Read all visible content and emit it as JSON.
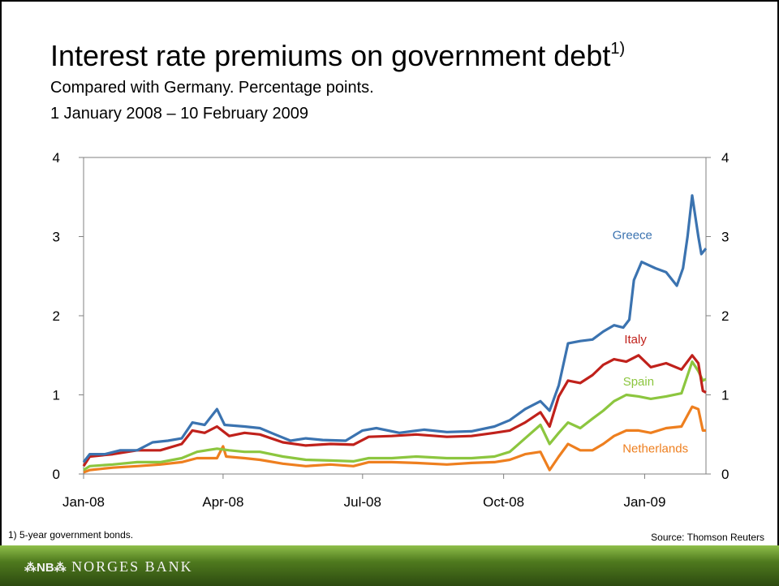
{
  "title": "Interest rate premiums on government debt",
  "title_sup": "1)",
  "subtitle_line1": "Compared with Germany. Percentage points.",
  "subtitle_line2": "1 January 2008 – 10 February 2009",
  "footnote": "1)  5-year government bonds.",
  "source": "Source: Thomson Reuters",
  "footer": {
    "logo_mark": "⁂NB⁂",
    "logo_text": "NORGES BANK"
  },
  "chart_data": {
    "type": "line",
    "x_label": "",
    "y_label": "",
    "x_range": [
      "2008-01-01",
      "2009-02-10"
    ],
    "y_range": [
      0,
      4
    ],
    "y_ticks": [
      "0",
      "1",
      "2",
      "3",
      "4"
    ],
    "x_ticks": [
      {
        "date": "2008-01-01",
        "label": "Jan-08"
      },
      {
        "date": "2008-04-01",
        "label": "Apr-08"
      },
      {
        "date": "2008-07-01",
        "label": "Jul-08"
      },
      {
        "date": "2008-10-01",
        "label": "Oct-08"
      },
      {
        "date": "2009-01-01",
        "label": "Jan-09"
      }
    ],
    "grid": false,
    "secondary_y_axis": true,
    "series": [
      {
        "name": "Greece",
        "color": "#3b73b0",
        "points": [
          [
            "2008-01-01",
            0.15
          ],
          [
            "2008-01-05",
            0.25
          ],
          [
            "2008-01-15",
            0.25
          ],
          [
            "2008-01-25",
            0.3
          ],
          [
            "2008-02-05",
            0.3
          ],
          [
            "2008-02-15",
            0.4
          ],
          [
            "2008-02-25",
            0.42
          ],
          [
            "2008-03-05",
            0.45
          ],
          [
            "2008-03-12",
            0.65
          ],
          [
            "2008-03-20",
            0.62
          ],
          [
            "2008-03-28",
            0.82
          ],
          [
            "2008-04-02",
            0.62
          ],
          [
            "2008-04-15",
            0.6
          ],
          [
            "2008-04-25",
            0.58
          ],
          [
            "2008-05-05",
            0.5
          ],
          [
            "2008-05-15",
            0.42
          ],
          [
            "2008-05-25",
            0.45
          ],
          [
            "2008-06-05",
            0.43
          ],
          [
            "2008-06-20",
            0.42
          ],
          [
            "2008-07-01",
            0.55
          ],
          [
            "2008-07-10",
            0.58
          ],
          [
            "2008-07-25",
            0.52
          ],
          [
            "2008-08-10",
            0.56
          ],
          [
            "2008-08-25",
            0.53
          ],
          [
            "2008-09-10",
            0.54
          ],
          [
            "2008-09-25",
            0.6
          ],
          [
            "2008-10-05",
            0.68
          ],
          [
            "2008-10-15",
            0.82
          ],
          [
            "2008-10-25",
            0.92
          ],
          [
            "2008-10-31",
            0.8
          ],
          [
            "2008-11-06",
            1.12
          ],
          [
            "2008-11-12",
            1.65
          ],
          [
            "2008-11-20",
            1.68
          ],
          [
            "2008-11-28",
            1.7
          ],
          [
            "2008-12-05",
            1.8
          ],
          [
            "2008-12-12",
            1.88
          ],
          [
            "2008-12-18",
            1.85
          ],
          [
            "2008-12-22",
            1.95
          ],
          [
            "2008-12-25",
            2.45
          ],
          [
            "2008-12-30",
            2.68
          ],
          [
            "2009-01-08",
            2.6
          ],
          [
            "2009-01-15",
            2.55
          ],
          [
            "2009-01-22",
            2.38
          ],
          [
            "2009-01-26",
            2.6
          ],
          [
            "2009-01-29",
            3.0
          ],
          [
            "2009-02-01",
            3.52
          ],
          [
            "2009-02-05",
            3.0
          ],
          [
            "2009-02-07",
            2.78
          ],
          [
            "2009-02-10",
            2.85
          ]
        ]
      },
      {
        "name": "Italy",
        "color": "#c0211b",
        "points": [
          [
            "2008-01-01",
            0.1
          ],
          [
            "2008-01-05",
            0.22
          ],
          [
            "2008-01-20",
            0.25
          ],
          [
            "2008-02-05",
            0.3
          ],
          [
            "2008-02-20",
            0.3
          ],
          [
            "2008-03-05",
            0.38
          ],
          [
            "2008-03-12",
            0.55
          ],
          [
            "2008-03-20",
            0.52
          ],
          [
            "2008-03-28",
            0.6
          ],
          [
            "2008-04-05",
            0.48
          ],
          [
            "2008-04-15",
            0.52
          ],
          [
            "2008-04-25",
            0.5
          ],
          [
            "2008-05-10",
            0.4
          ],
          [
            "2008-05-25",
            0.36
          ],
          [
            "2008-06-10",
            0.38
          ],
          [
            "2008-06-25",
            0.37
          ],
          [
            "2008-07-05",
            0.47
          ],
          [
            "2008-07-20",
            0.48
          ],
          [
            "2008-08-05",
            0.5
          ],
          [
            "2008-08-25",
            0.47
          ],
          [
            "2008-09-10",
            0.48
          ],
          [
            "2008-09-25",
            0.52
          ],
          [
            "2008-10-05",
            0.55
          ],
          [
            "2008-10-15",
            0.65
          ],
          [
            "2008-10-25",
            0.78
          ],
          [
            "2008-10-31",
            0.6
          ],
          [
            "2008-11-06",
            0.98
          ],
          [
            "2008-11-12",
            1.18
          ],
          [
            "2008-11-20",
            1.15
          ],
          [
            "2008-11-28",
            1.25
          ],
          [
            "2008-12-05",
            1.38
          ],
          [
            "2008-12-12",
            1.45
          ],
          [
            "2008-12-20",
            1.42
          ],
          [
            "2008-12-28",
            1.5
          ],
          [
            "2009-01-05",
            1.35
          ],
          [
            "2009-01-15",
            1.4
          ],
          [
            "2009-01-25",
            1.32
          ],
          [
            "2009-02-01",
            1.5
          ],
          [
            "2009-02-05",
            1.4
          ],
          [
            "2009-02-08",
            1.05
          ],
          [
            "2009-02-10",
            1.03
          ]
        ]
      },
      {
        "name": "Spain",
        "color": "#8cc63f",
        "points": [
          [
            "2008-01-01",
            0.05
          ],
          [
            "2008-01-05",
            0.1
          ],
          [
            "2008-01-20",
            0.12
          ],
          [
            "2008-02-05",
            0.15
          ],
          [
            "2008-02-20",
            0.15
          ],
          [
            "2008-03-05",
            0.2
          ],
          [
            "2008-03-15",
            0.28
          ],
          [
            "2008-03-28",
            0.32
          ],
          [
            "2008-04-05",
            0.3
          ],
          [
            "2008-04-15",
            0.28
          ],
          [
            "2008-04-25",
            0.28
          ],
          [
            "2008-05-10",
            0.22
          ],
          [
            "2008-05-25",
            0.18
          ],
          [
            "2008-06-10",
            0.17
          ],
          [
            "2008-06-25",
            0.16
          ],
          [
            "2008-07-05",
            0.2
          ],
          [
            "2008-07-20",
            0.2
          ],
          [
            "2008-08-05",
            0.22
          ],
          [
            "2008-08-25",
            0.2
          ],
          [
            "2008-09-10",
            0.2
          ],
          [
            "2008-09-25",
            0.22
          ],
          [
            "2008-10-05",
            0.28
          ],
          [
            "2008-10-15",
            0.45
          ],
          [
            "2008-10-25",
            0.62
          ],
          [
            "2008-10-31",
            0.38
          ],
          [
            "2008-11-06",
            0.52
          ],
          [
            "2008-11-12",
            0.65
          ],
          [
            "2008-11-20",
            0.58
          ],
          [
            "2008-11-28",
            0.7
          ],
          [
            "2008-12-05",
            0.8
          ],
          [
            "2008-12-12",
            0.92
          ],
          [
            "2008-12-20",
            1.0
          ],
          [
            "2008-12-28",
            0.98
          ],
          [
            "2009-01-05",
            0.95
          ],
          [
            "2009-01-15",
            0.98
          ],
          [
            "2009-01-25",
            1.02
          ],
          [
            "2009-02-01",
            1.42
          ],
          [
            "2009-02-05",
            1.3
          ],
          [
            "2009-02-08",
            1.18
          ],
          [
            "2009-02-10",
            1.2
          ]
        ]
      },
      {
        "name": "Netherlands",
        "color": "#ee7f1f",
        "points": [
          [
            "2008-01-01",
            0.02
          ],
          [
            "2008-01-05",
            0.05
          ],
          [
            "2008-01-20",
            0.08
          ],
          [
            "2008-02-05",
            0.1
          ],
          [
            "2008-02-20",
            0.12
          ],
          [
            "2008-03-05",
            0.15
          ],
          [
            "2008-03-15",
            0.2
          ],
          [
            "2008-03-28",
            0.2
          ],
          [
            "2008-04-01",
            0.35
          ],
          [
            "2008-04-03",
            0.22
          ],
          [
            "2008-04-15",
            0.2
          ],
          [
            "2008-04-25",
            0.18
          ],
          [
            "2008-05-10",
            0.13
          ],
          [
            "2008-05-25",
            0.1
          ],
          [
            "2008-06-10",
            0.12
          ],
          [
            "2008-06-25",
            0.1
          ],
          [
            "2008-07-05",
            0.15
          ],
          [
            "2008-07-20",
            0.15
          ],
          [
            "2008-08-05",
            0.14
          ],
          [
            "2008-08-25",
            0.12
          ],
          [
            "2008-09-10",
            0.14
          ],
          [
            "2008-09-25",
            0.15
          ],
          [
            "2008-10-05",
            0.18
          ],
          [
            "2008-10-15",
            0.25
          ],
          [
            "2008-10-25",
            0.28
          ],
          [
            "2008-10-31",
            0.05
          ],
          [
            "2008-11-06",
            0.22
          ],
          [
            "2008-11-12",
            0.38
          ],
          [
            "2008-11-20",
            0.3
          ],
          [
            "2008-11-28",
            0.3
          ],
          [
            "2008-12-05",
            0.38
          ],
          [
            "2008-12-12",
            0.48
          ],
          [
            "2008-12-20",
            0.55
          ],
          [
            "2008-12-28",
            0.55
          ],
          [
            "2009-01-05",
            0.52
          ],
          [
            "2009-01-15",
            0.58
          ],
          [
            "2009-01-25",
            0.6
          ],
          [
            "2009-02-01",
            0.85
          ],
          [
            "2009-02-05",
            0.82
          ],
          [
            "2009-02-08",
            0.55
          ],
          [
            "2009-02-10",
            0.55
          ]
        ]
      }
    ]
  }
}
